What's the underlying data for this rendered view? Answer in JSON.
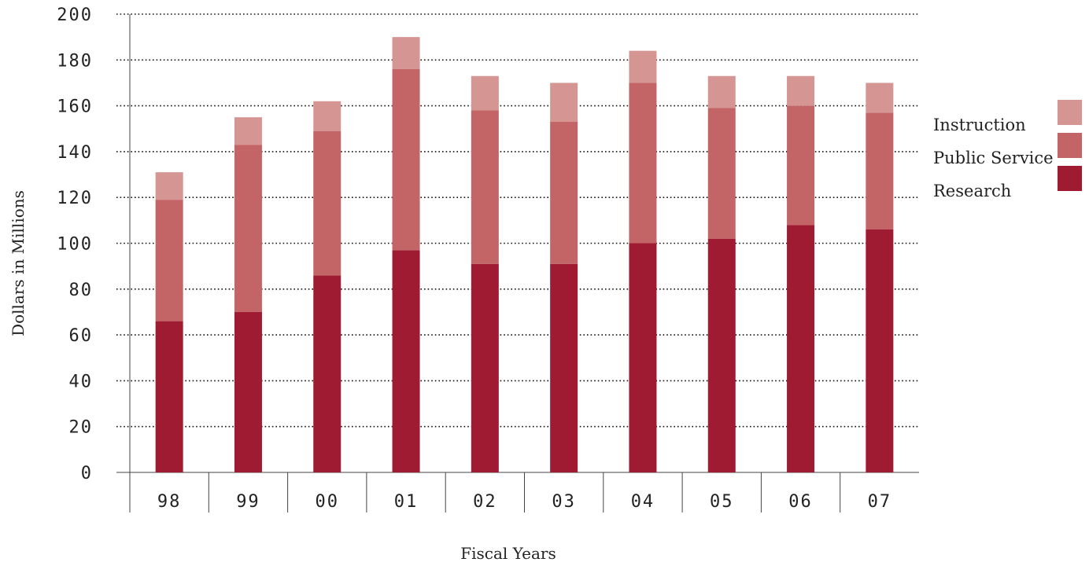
{
  "chart_data": {
    "type": "bar",
    "stacked": true,
    "title": "",
    "xlabel": "Fiscal Years",
    "ylabel": "Dollars in Millions",
    "ylim": [
      0,
      200
    ],
    "yticks": [
      0,
      20,
      40,
      60,
      80,
      100,
      120,
      140,
      160,
      180,
      200
    ],
    "grid": true,
    "legend_position": "right",
    "categories": [
      "98",
      "99",
      "00",
      "01",
      "02",
      "03",
      "04",
      "05",
      "06",
      "07"
    ],
    "series": [
      {
        "name": "Research",
        "color": "#9e1b32",
        "values": [
          66,
          70,
          86,
          97,
          91,
          91,
          100,
          102,
          108,
          106
        ]
      },
      {
        "name": "Public Service",
        "color": "#c36466",
        "values": [
          53,
          73,
          63,
          79,
          67,
          62,
          70,
          57,
          52,
          51
        ]
      },
      {
        "name": "Instruction",
        "color": "#d59593",
        "values": [
          12,
          12,
          13,
          14,
          15,
          17,
          14,
          14,
          13,
          13
        ]
      }
    ],
    "legend": [
      "Instruction",
      "Public Service",
      "Research"
    ]
  }
}
